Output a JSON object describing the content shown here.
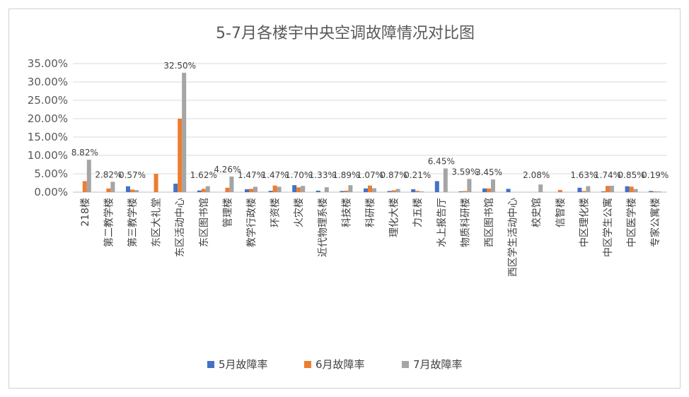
{
  "chart_data": {
    "type": "bar",
    "title": "5-7月各楼宇中央空调故障情况对比图",
    "xlabel": "",
    "ylabel": "",
    "ylim": [
      0,
      35
    ],
    "yticks": [
      "0.00%",
      "5.00%",
      "10.00%",
      "15.00%",
      "20.00%",
      "25.00%",
      "30.00%",
      "35.00%"
    ],
    "grid": true,
    "legend_position": "bottom",
    "categories": [
      "218楼",
      "第二教学楼",
      "第三教学楼",
      "东区大礼堂",
      "东区活动中心",
      "东区图书馆",
      "管理楼",
      "教学行政楼",
      "环资楼",
      "火灾楼",
      "近代物理系楼",
      "科技楼",
      "科研楼",
      "理化大楼",
      "力五楼",
      "水上报告厅",
      "物质科研楼",
      "西区图书馆",
      "西区学生活动中心",
      "校史馆",
      "信智楼",
      "中区理化楼",
      "中区学生公寓",
      "中区医学楼",
      "专家公寓楼"
    ],
    "series": [
      {
        "name": "5月故障率",
        "color": "#4472c4",
        "values": [
          0,
          0,
          1.6,
          0,
          2.3,
          0.45,
          0,
          0.8,
          0.35,
          1.9,
          0.4,
          0.3,
          1.0,
          0.3,
          0.8,
          3.0,
          0.2,
          1.0,
          0.9,
          0,
          0,
          1.2,
          0.2,
          1.6,
          0.3
        ]
      },
      {
        "name": "6月故障率",
        "color": "#ed7d31",
        "values": [
          3.0,
          1.0,
          0.7,
          5.0,
          20.0,
          0.9,
          1.2,
          0.9,
          1.8,
          1.3,
          0,
          0.4,
          1.8,
          0.5,
          0.35,
          0,
          0.3,
          1.0,
          0,
          0,
          0.6,
          0.3,
          1.7,
          1.5,
          0.2
        ]
      },
      {
        "name": "7月故障率",
        "color": "#a5a5a5",
        "values": [
          8.82,
          2.82,
          0.57,
          0,
          32.5,
          1.62,
          4.26,
          1.47,
          1.47,
          1.7,
          1.33,
          1.89,
          1.07,
          0.87,
          0.21,
          6.45,
          3.59,
          3.45,
          0,
          2.08,
          0,
          1.63,
          1.74,
          0.85,
          0.19
        ]
      }
    ],
    "data_labels": [
      "8.82%",
      "2.82%",
      "0.57%",
      "",
      "32.50%",
      "1.62%",
      "4.26%",
      "1.47%",
      "1.47%",
      "1.70%",
      "1.33%",
      "1.89%",
      "1.07%",
      "0.87%",
      "0.21%",
      "6.45%",
      "3.59%",
      "3.45%",
      "",
      "2.08%",
      "",
      "1.63%",
      "1.74%",
      "0.85%",
      "0.19%"
    ]
  }
}
